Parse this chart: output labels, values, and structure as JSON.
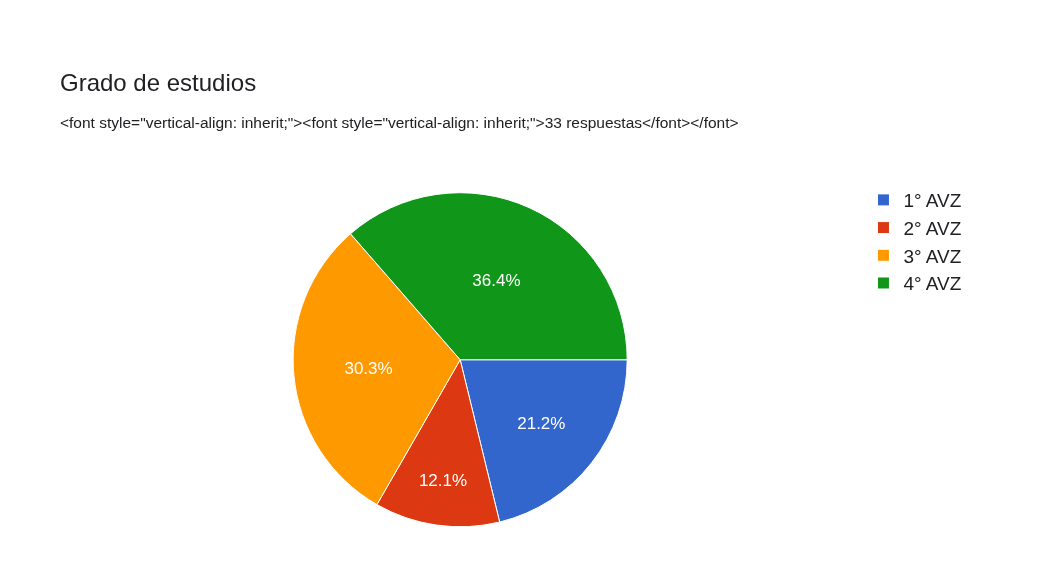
{
  "chart_data": {
    "type": "pie",
    "title": "Grado de estudios",
    "subtitle": "<font style=\"vertical-align: inherit;\"><font style=\"vertical-align: inherit;\">33 respuestas</font></font>",
    "categories": [
      "1° AVZ",
      "2° AVZ",
      "3° AVZ",
      "4° AVZ"
    ],
    "values": [
      21.2,
      12.1,
      30.3,
      36.4
    ],
    "colors": [
      "#3366cc",
      "#dc3912",
      "#ff9900",
      "#109618"
    ],
    "value_labels": [
      "21.2%",
      "12.1%",
      "30.3%",
      "36.4%"
    ],
    "legend": "top right"
  }
}
